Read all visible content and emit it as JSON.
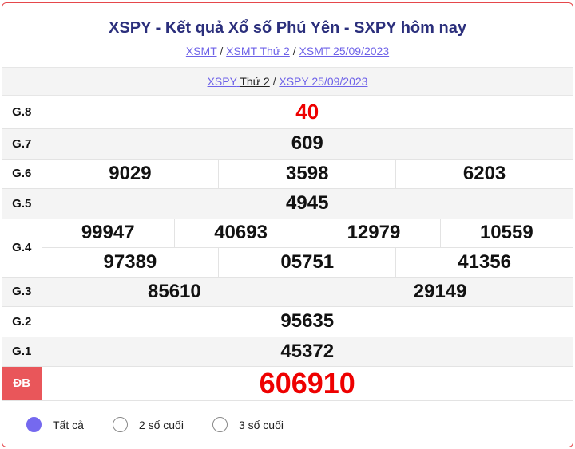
{
  "title": "XSPY - Kết quả Xổ số Phú Yên - SXPY hôm nay",
  "breadcrumb": [
    "XSMT",
    "XSMT Thứ 2",
    "XSMT 25/09/2023"
  ],
  "sub_links": {
    "a_link": "XSPY",
    "a_plain": "Thứ 2",
    "b": "XSPY 25/09/2023"
  },
  "prizes": {
    "g8": {
      "label": "G.8",
      "values": [
        "40"
      ]
    },
    "g7": {
      "label": "G.7",
      "values": [
        "609"
      ]
    },
    "g6": {
      "label": "G.6",
      "values": [
        "9029",
        "3598",
        "6203"
      ]
    },
    "g5": {
      "label": "G.5",
      "values": [
        "4945"
      ]
    },
    "g4": {
      "label": "G.4",
      "values": [
        "99947",
        "40693",
        "12979",
        "10559",
        "97389",
        "05751",
        "41356"
      ]
    },
    "g3": {
      "label": "G.3",
      "values": [
        "85610",
        "29149"
      ]
    },
    "g2": {
      "label": "G.2",
      "values": [
        "95635"
      ]
    },
    "g1": {
      "label": "G.1",
      "values": [
        "45372"
      ]
    },
    "db": {
      "label": "ĐB",
      "values": [
        "606910"
      ]
    }
  },
  "filters": [
    {
      "label": "Tất cả",
      "selected": true
    },
    {
      "label": "2 số cuối",
      "selected": false
    },
    {
      "label": "3 số cuối",
      "selected": false
    }
  ],
  "colors": {
    "accent": "#7569ef",
    "special": "#e00000",
    "border": "#e5474b"
  }
}
